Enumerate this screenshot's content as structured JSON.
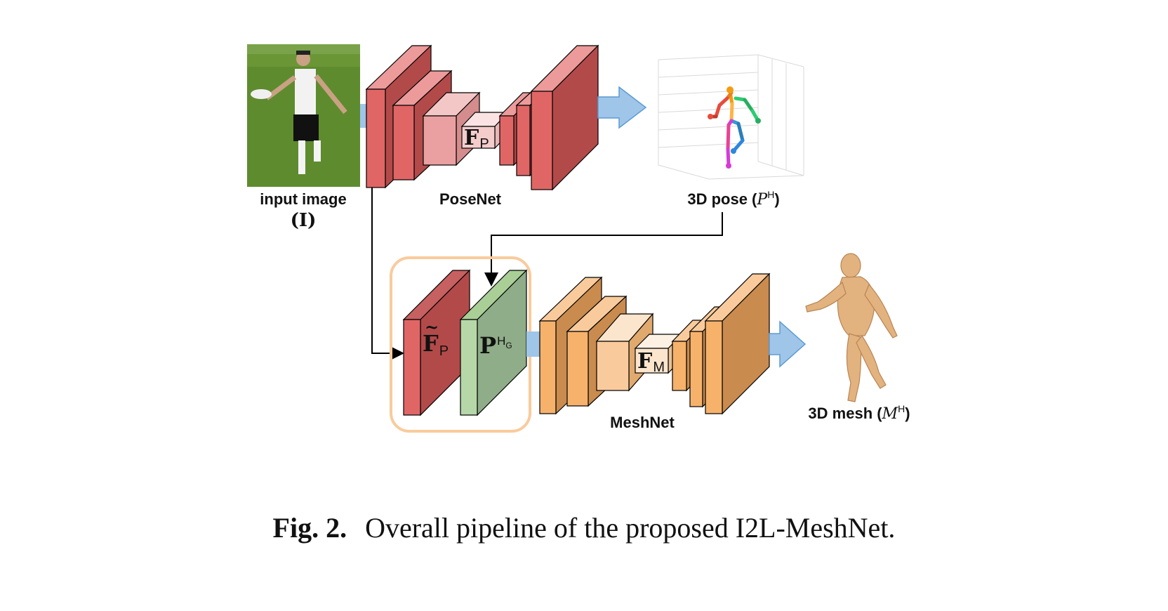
{
  "diagram": {
    "input_label": "input image",
    "input_symbol": "(I)",
    "posenet_label": "PoseNet",
    "pose_label": "3D pose (",
    "pose_sym": "P",
    "pose_sup": "H",
    "pose_close": ")",
    "meshnet_label": "MeshNet",
    "mesh_label": "3D mesh (",
    "mesh_sym": "M",
    "mesh_sup": "H",
    "mesh_close": ")",
    "fp_main": "F",
    "fp_sub": "P",
    "fptilde_main": "F",
    "fptilde_sub": "P",
    "phg_main": "P",
    "phg_sup": "H",
    "phg_subsup": "G",
    "fm_main": "F",
    "fm_sub": "M"
  },
  "caption": {
    "label": "Fig. 2.",
    "text": "Overall pipeline of the proposed I2L-MeshNet."
  },
  "colors": {
    "posenet_red": "#e06666",
    "posenet_pink": "#f4c7c7",
    "fused_red": "#b34a4a",
    "fused_green": "#93c47d",
    "meshnet_orange": "#f6b26b",
    "meshnet_light": "#fce5cd",
    "highlight_border": "#f9cb9c",
    "arrow_blue": "#9fc5e8"
  }
}
